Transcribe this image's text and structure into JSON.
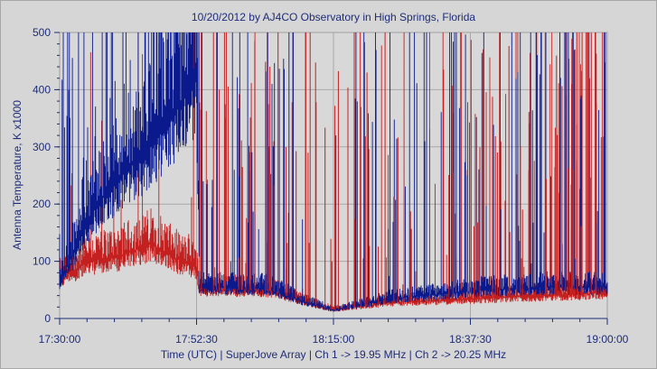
{
  "chart_data": {
    "type": "line",
    "title": "10/20/2012  by  AJ4CO Observatory  in  High Springs, Florida",
    "ylabel": "Antenna Temperature, K x1000",
    "xlabel": "Time (UTC)  |  SuperJove Array  |  Ch 1 -> 19.95 MHz  |  Ch 2 -> 20.25 MHz",
    "ylim": [
      0,
      500
    ],
    "xlim": [
      "17:30:00",
      "19:00:00"
    ],
    "x_ticks": [
      "17:30:00",
      "17:52:30",
      "18:15:00",
      "18:37:30",
      "19:00:00"
    ],
    "y_ticks": [
      "0",
      "100",
      "200",
      "300",
      "400",
      "500"
    ],
    "grid": true,
    "series": [
      {
        "name": "Ch 1 -> 19.95 MHz",
        "color": "#0a1a8c",
        "x_minutes_from_1730": [
          0,
          5,
          10,
          15,
          20,
          22.5,
          23,
          30,
          35,
          40,
          45,
          50,
          55,
          60,
          65,
          70,
          75,
          80,
          85,
          90
        ],
        "baseline": [
          60,
          180,
          250,
          300,
          380,
          420,
          55,
          55,
          52,
          30,
          15,
          25,
          35,
          40,
          45,
          50,
          52,
          55,
          55,
          55
        ],
        "bursts": "dense spikes to 500 throughout, sparse near 18:15"
      },
      {
        "name": "Ch 2 -> 20.25 MHz",
        "color": "#c42020",
        "x_minutes_from_1730": [
          0,
          5,
          10,
          15,
          20,
          22.5,
          23,
          30,
          35,
          40,
          45,
          50,
          55,
          60,
          65,
          70,
          75,
          80,
          85,
          90
        ],
        "baseline": [
          70,
          100,
          110,
          130,
          100,
          90,
          50,
          50,
          48,
          30,
          15,
          22,
          28,
          30,
          32,
          35,
          38,
          40,
          42,
          45
        ],
        "bursts": "spikes to 500 mostly after 17:45"
      }
    ]
  }
}
